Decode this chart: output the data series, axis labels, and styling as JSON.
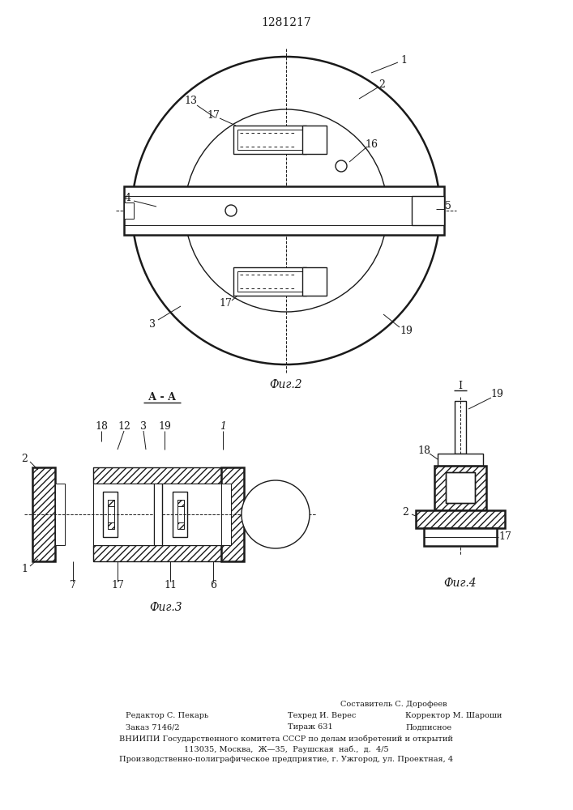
{
  "patent_number": "1281217",
  "bg_color": "#ffffff",
  "line_color": "#1a1a1a",
  "fig2_label": "Фиг.2",
  "fig3_label": "Фиг.3",
  "fig4_label": "Фиг.4",
  "section_label": "А - А",
  "footer_col1_line1": "Редактор С. Пекарь",
  "footer_col1_line2": "Заказ 7146/2",
  "footer_col2_line1": "Техред И. Верес",
  "footer_col2_line2": "Тираж 631",
  "footer_col3_line1": "Корректор М. Шароши",
  "footer_col3_line2": "Подписное",
  "footer_col0_line1": "Составитель С. Дорофеев",
  "footer_vniipи": "ВНИИПИ Государственного комитета СССР по делам изобретений и открытий",
  "footer_addr1": "113035, Москва,  Ж—35,  Раушская  наб.,  д.  4/5",
  "footer_addr2": "Производственно-полиграфическое предприятие, г. Ужгород, ул. Проектная, 4"
}
